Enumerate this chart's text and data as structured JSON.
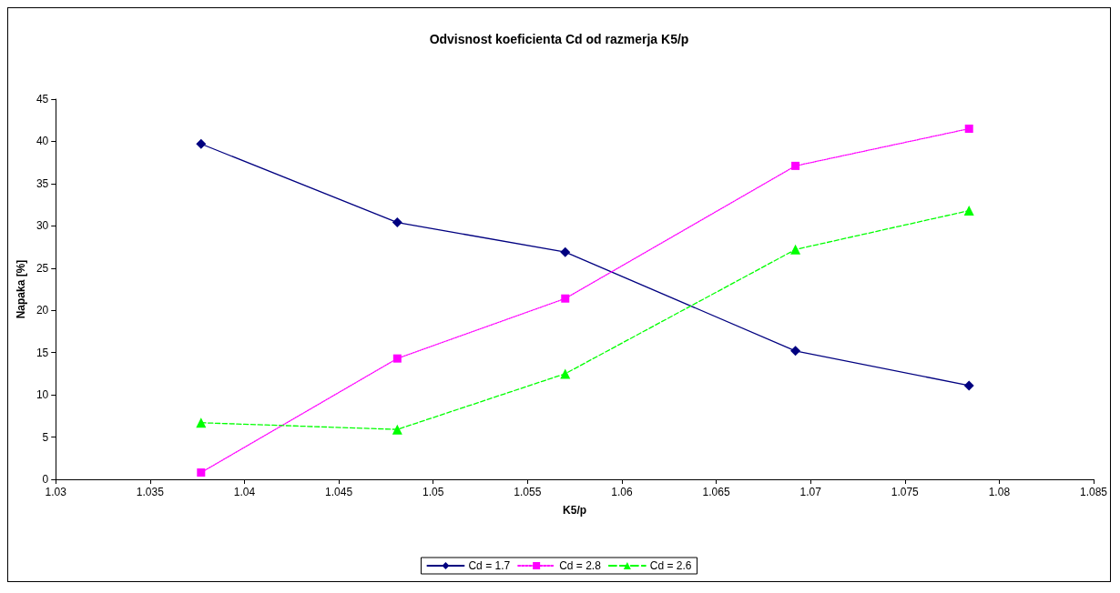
{
  "chart_data": {
    "type": "line",
    "title": "Odvisnost koeficienta Cd od razmerja K5/p",
    "xlabel": "K5/p",
    "ylabel": "Napaka [%]",
    "x": [
      1.0377,
      1.0481,
      1.057,
      1.0692,
      1.0784
    ],
    "series": [
      {
        "name": "Cd = 1.7",
        "color": "#000080",
        "marker": "diamond",
        "line_style": "solid",
        "values": [
          39.7,
          30.4,
          26.9,
          15.2,
          11.1
        ]
      },
      {
        "name": "Cd = 2.8",
        "color": "#ff00ff",
        "marker": "square",
        "line_style": "dotted",
        "values": [
          0.8,
          14.3,
          21.4,
          37.1,
          41.5
        ]
      },
      {
        "name": "Cd = 2.6",
        "color": "#00ff00",
        "marker": "triangle",
        "line_style": "dashed",
        "values": [
          6.7,
          5.9,
          12.5,
          27.2,
          31.8
        ]
      }
    ],
    "xlim": [
      1.03,
      1.085
    ],
    "xticks": [
      1.03,
      1.035,
      1.04,
      1.045,
      1.05,
      1.055,
      1.06,
      1.065,
      1.07,
      1.075,
      1.08,
      1.085
    ],
    "ylim": [
      0,
      45
    ],
    "yticks": [
      0,
      5,
      10,
      15,
      20,
      25,
      30,
      35,
      40,
      45
    ],
    "grid": false,
    "legend": "bottom"
  }
}
